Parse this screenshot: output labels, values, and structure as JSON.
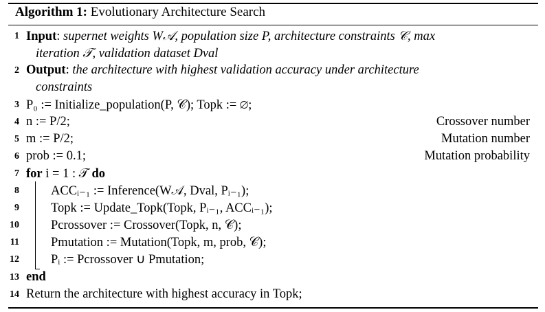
{
  "caption": {
    "label": "Algorithm 1:",
    "title": "Evolutionary Architecture Search"
  },
  "lines": [
    {
      "num": "1",
      "kw": "Input",
      "sep": ": ",
      "text": "supernet weights W𝒜, population size P, architecture constraints 𝒞, max"
    },
    {
      "num": "",
      "text": "iteration 𝒯, validation dataset Dval"
    },
    {
      "num": "2",
      "kw": "Output",
      "sep": ": ",
      "text": "the architecture with highest validation accuracy under architecture"
    },
    {
      "num": "",
      "text": "constraints"
    },
    {
      "num": "3",
      "text": "P₀ := Initialize_population(P, 𝒞); Topk := ∅;"
    },
    {
      "num": "4",
      "text": "n := P/2;",
      "comment": "Crossover number"
    },
    {
      "num": "5",
      "text": "m := P/2;",
      "comment": "Mutation number"
    },
    {
      "num": "6",
      "text": "prob := 0.1;",
      "comment": "Mutation probability"
    },
    {
      "num": "7",
      "kw": "for",
      "text": " i = 1 : 𝒯 ",
      "kw2": "do"
    },
    {
      "num": "8",
      "text": "ACCᵢ₋₁ := Inference(W𝒜, Dval, Pᵢ₋₁);"
    },
    {
      "num": "9",
      "text": "Topk := Update_Topk(Topk, Pᵢ₋₁, ACCᵢ₋₁);"
    },
    {
      "num": "10",
      "text": "Pcrossover := Crossover(Topk, n, 𝒞);"
    },
    {
      "num": "11",
      "text": "Pmutation := Mutation(Topk, m, prob, 𝒞);"
    },
    {
      "num": "12",
      "text": "Pᵢ := Pcrossover ∪ Pmutation;"
    },
    {
      "num": "13",
      "kw": "end"
    },
    {
      "num": "14",
      "text": "Return the architecture with highest accuracy in Topk;"
    }
  ]
}
